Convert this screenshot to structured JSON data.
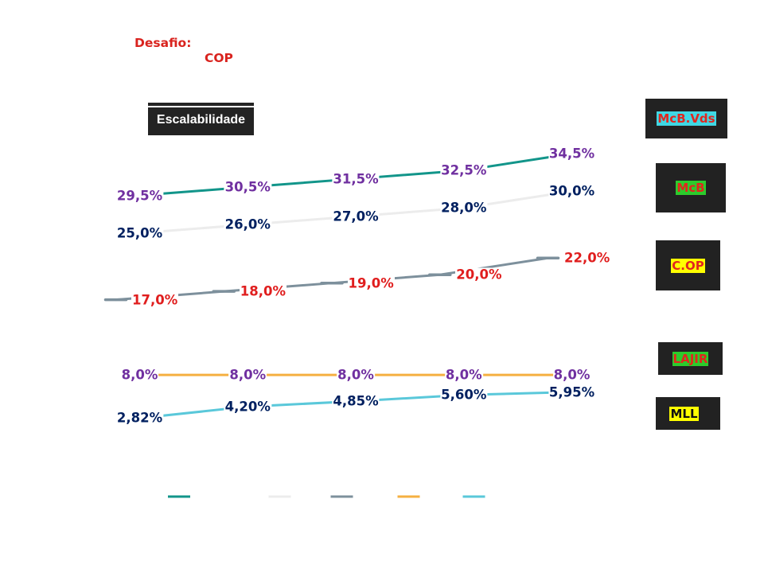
{
  "chart_data": {
    "type": "line",
    "grid": false,
    "legend": "bottom",
    "series": [
      {
        "color": "#12958a",
        "label_color": "#7030a0",
        "label_position": "center",
        "marker": "none",
        "values": [
          29.5,
          30.5,
          31.5,
          32.5,
          34.5
        ],
        "labels": [
          "29,5%",
          "30,5%",
          "31,5%",
          "32,5%",
          "34,5%"
        ]
      },
      {
        "color": "#ececec",
        "label_color": "#002060",
        "label_position": "center",
        "marker": "none",
        "values": [
          25.0,
          26.0,
          27.0,
          28.0,
          30.0
        ],
        "labels": [
          "25,0%",
          "26,0%",
          "27,0%",
          "28,0%",
          "30,0%"
        ]
      },
      {
        "color": "#7d909c",
        "label_color": "#e01e1e",
        "label_position": "right",
        "marker": "dash",
        "values": [
          17.0,
          18.0,
          19.0,
          20.0,
          22.0
        ],
        "labels": [
          "17,0%",
          "18,0%",
          "19,0%",
          "20,0%",
          "22,0%"
        ]
      },
      {
        "color": "#f5b041",
        "label_color": "#7030a0",
        "label_position": "center",
        "marker": "none",
        "values": [
          8.0,
          8.0,
          8.0,
          8.0,
          8.0
        ],
        "labels": [
          "8,0%",
          "8,0%",
          "8,0%",
          "8,0%",
          "8,0%"
        ]
      },
      {
        "color": "#5ac8da",
        "label_color": "#002060",
        "label_position": "center",
        "marker": "none",
        "values": [
          2.82,
          4.2,
          4.85,
          5.6,
          5.95
        ],
        "labels": [
          "2,82%",
          "4,20%",
          "4,85%",
          "5,60%",
          "5,95%"
        ]
      }
    ],
    "annotations": {
      "challenge_label": "Desafio:",
      "challenge_value": "COP",
      "badge": "Escalabilidade",
      "tags": [
        {
          "text": "McB.Vds",
          "text_color": "#e2261e",
          "highlight": "#3fd8e4"
        },
        {
          "text": "McB",
          "text_color": "#e2261e",
          "highlight": "#2ccb2c"
        },
        {
          "text": "C.OP",
          "text_color": "#e2261e",
          "highlight": "#ffff00"
        },
        {
          "text": "LAJIR",
          "text_color": "#e2261e",
          "highlight": "#2ccb2c"
        },
        {
          "text": "MLL",
          "text_color": "#111111",
          "highlight": "#ffff00"
        }
      ]
    }
  }
}
